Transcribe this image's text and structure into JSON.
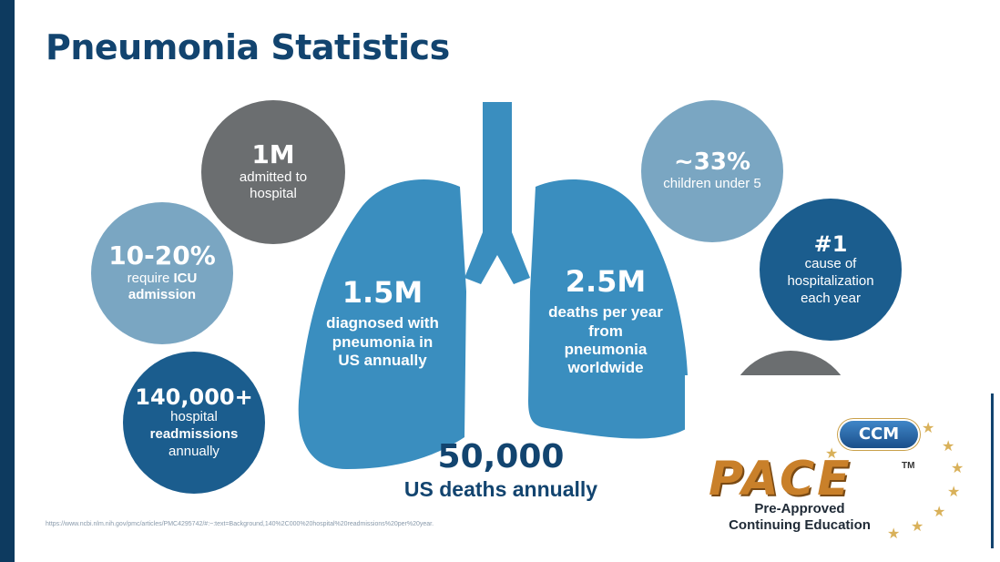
{
  "slide": {
    "title": "Pneumonia Statistics",
    "source": "https://www.ncbi.nlm.nih.gov/pmc/articles/PMC4295742/#:~:text=Background,140%2C000%20hospital%20readmissions%20per%20year."
  },
  "stats": {
    "admitted": {
      "value": "1M",
      "desc": "admitted to hospital"
    },
    "icu": {
      "value": "10-20%",
      "desc_pre": "require ",
      "desc_bold1": "ICU",
      "desc_bold2": "admission"
    },
    "readmissions": {
      "value": "140,000+",
      "desc_line1": "hospital",
      "desc_bold": "readmissions",
      "desc_line3": "annually"
    },
    "children": {
      "value": "~33%",
      "desc": "children under 5"
    },
    "cause": {
      "value": "#1",
      "desc": "cause of hospitalization each year"
    },
    "diagnosed": {
      "value": "1.5M",
      "desc": "diagnosed with pneumonia in US annually"
    },
    "deaths_world": {
      "value": "2.5M",
      "desc": "deaths per year from pneumonia worldwide"
    },
    "deaths_us": {
      "value": "50,000",
      "desc": "US deaths annually"
    }
  },
  "logo": {
    "badge": "CCM",
    "word": "PACE",
    "tm": "TM",
    "line1": "Pre-Approved",
    "line2": "Continuing Education"
  },
  "colors": {
    "title": "#12446f",
    "lung": "#3a8ebf",
    "gray_circle": "#6b6e70",
    "light_blue_circle": "#7aa6c2",
    "dark_blue_circle": "#1b5d8e",
    "left_bar": "#0d3a5f"
  }
}
